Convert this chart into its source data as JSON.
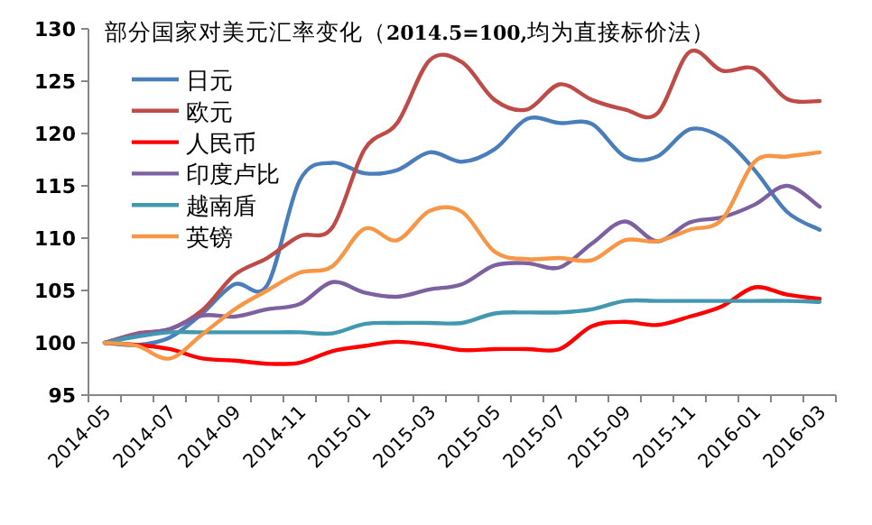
{
  "chart_data": {
    "type": "line",
    "title": "部分国家对美元汇率变化（**2014.5=100,**均为直接标价法）",
    "categories": [
      "2014-05",
      null,
      "2014-07",
      null,
      "2014-09",
      null,
      "2014-11",
      null,
      "2015-01",
      null,
      "2015-03",
      null,
      "2015-05",
      null,
      "2015-07",
      null,
      "2015-09",
      null,
      "2015-11",
      null,
      "2016-01",
      null,
      "2016-03"
    ],
    "series": [
      {
        "name": "日元",
        "color": "#4a7ebb",
        "values": [
          100,
          99.8,
          100.5,
          102.8,
          105.6,
          105.5,
          115.5,
          117.2,
          116.2,
          116.5,
          118.2,
          117.3,
          118.5,
          121.4,
          121,
          120.9,
          117.8,
          117.8,
          120.4,
          119.6,
          116.5,
          112.5,
          110.8
        ]
      },
      {
        "name": "欧元",
        "color": "#be4b48",
        "values": [
          100,
          100.9,
          101.3,
          103.1,
          106.5,
          108.1,
          110.2,
          111,
          118.5,
          121,
          127,
          126.8,
          123.2,
          122.3,
          124.7,
          123.2,
          122.3,
          121.9,
          127.8,
          126,
          126.2,
          123.3,
          123.1
        ]
      },
      {
        "name": "人民币",
        "color": "#ff0000",
        "values": [
          100,
          99.8,
          99.4,
          98.5,
          98.3,
          98,
          98.1,
          99.2,
          99.7,
          100.1,
          99.8,
          99.3,
          99.4,
          99.4,
          99.4,
          101.6,
          102,
          101.7,
          102.5,
          103.5,
          105.3,
          104.6,
          104.2
        ]
      },
      {
        "name": "印度卢比",
        "color": "#7d60a0",
        "values": [
          100,
          100.8,
          101.3,
          102.6,
          102.5,
          103.2,
          103.7,
          105.8,
          104.8,
          104.4,
          105.1,
          105.6,
          107.4,
          107.6,
          107.2,
          109.5,
          111.6,
          109.7,
          111.5,
          112,
          113.2,
          115,
          113
        ]
      },
      {
        "name": "越南盾",
        "color": "#4198af",
        "values": [
          100,
          100.6,
          101,
          101,
          101,
          101,
          101,
          100.9,
          101.8,
          101.9,
          101.9,
          101.9,
          102.8,
          102.9,
          102.9,
          103.2,
          104,
          104,
          104,
          104,
          104,
          104,
          103.9
        ]
      },
      {
        "name": "英镑",
        "color": "#f79646",
        "values": [
          100,
          99.7,
          98.5,
          100.8,
          103.2,
          105,
          106.7,
          107.3,
          110.9,
          109.8,
          112.6,
          112.5,
          108.7,
          108,
          108.1,
          107.9,
          109.8,
          109.7,
          110.8,
          111.8,
          117.3,
          117.8,
          118.2
        ]
      }
    ],
    "ylim": [
      95,
      130
    ],
    "yticks": [
      95,
      100,
      105,
      110,
      115,
      120,
      125,
      130
    ],
    "legend": "top left",
    "grid": false,
    "marker": "none",
    "line_style": "solid"
  }
}
